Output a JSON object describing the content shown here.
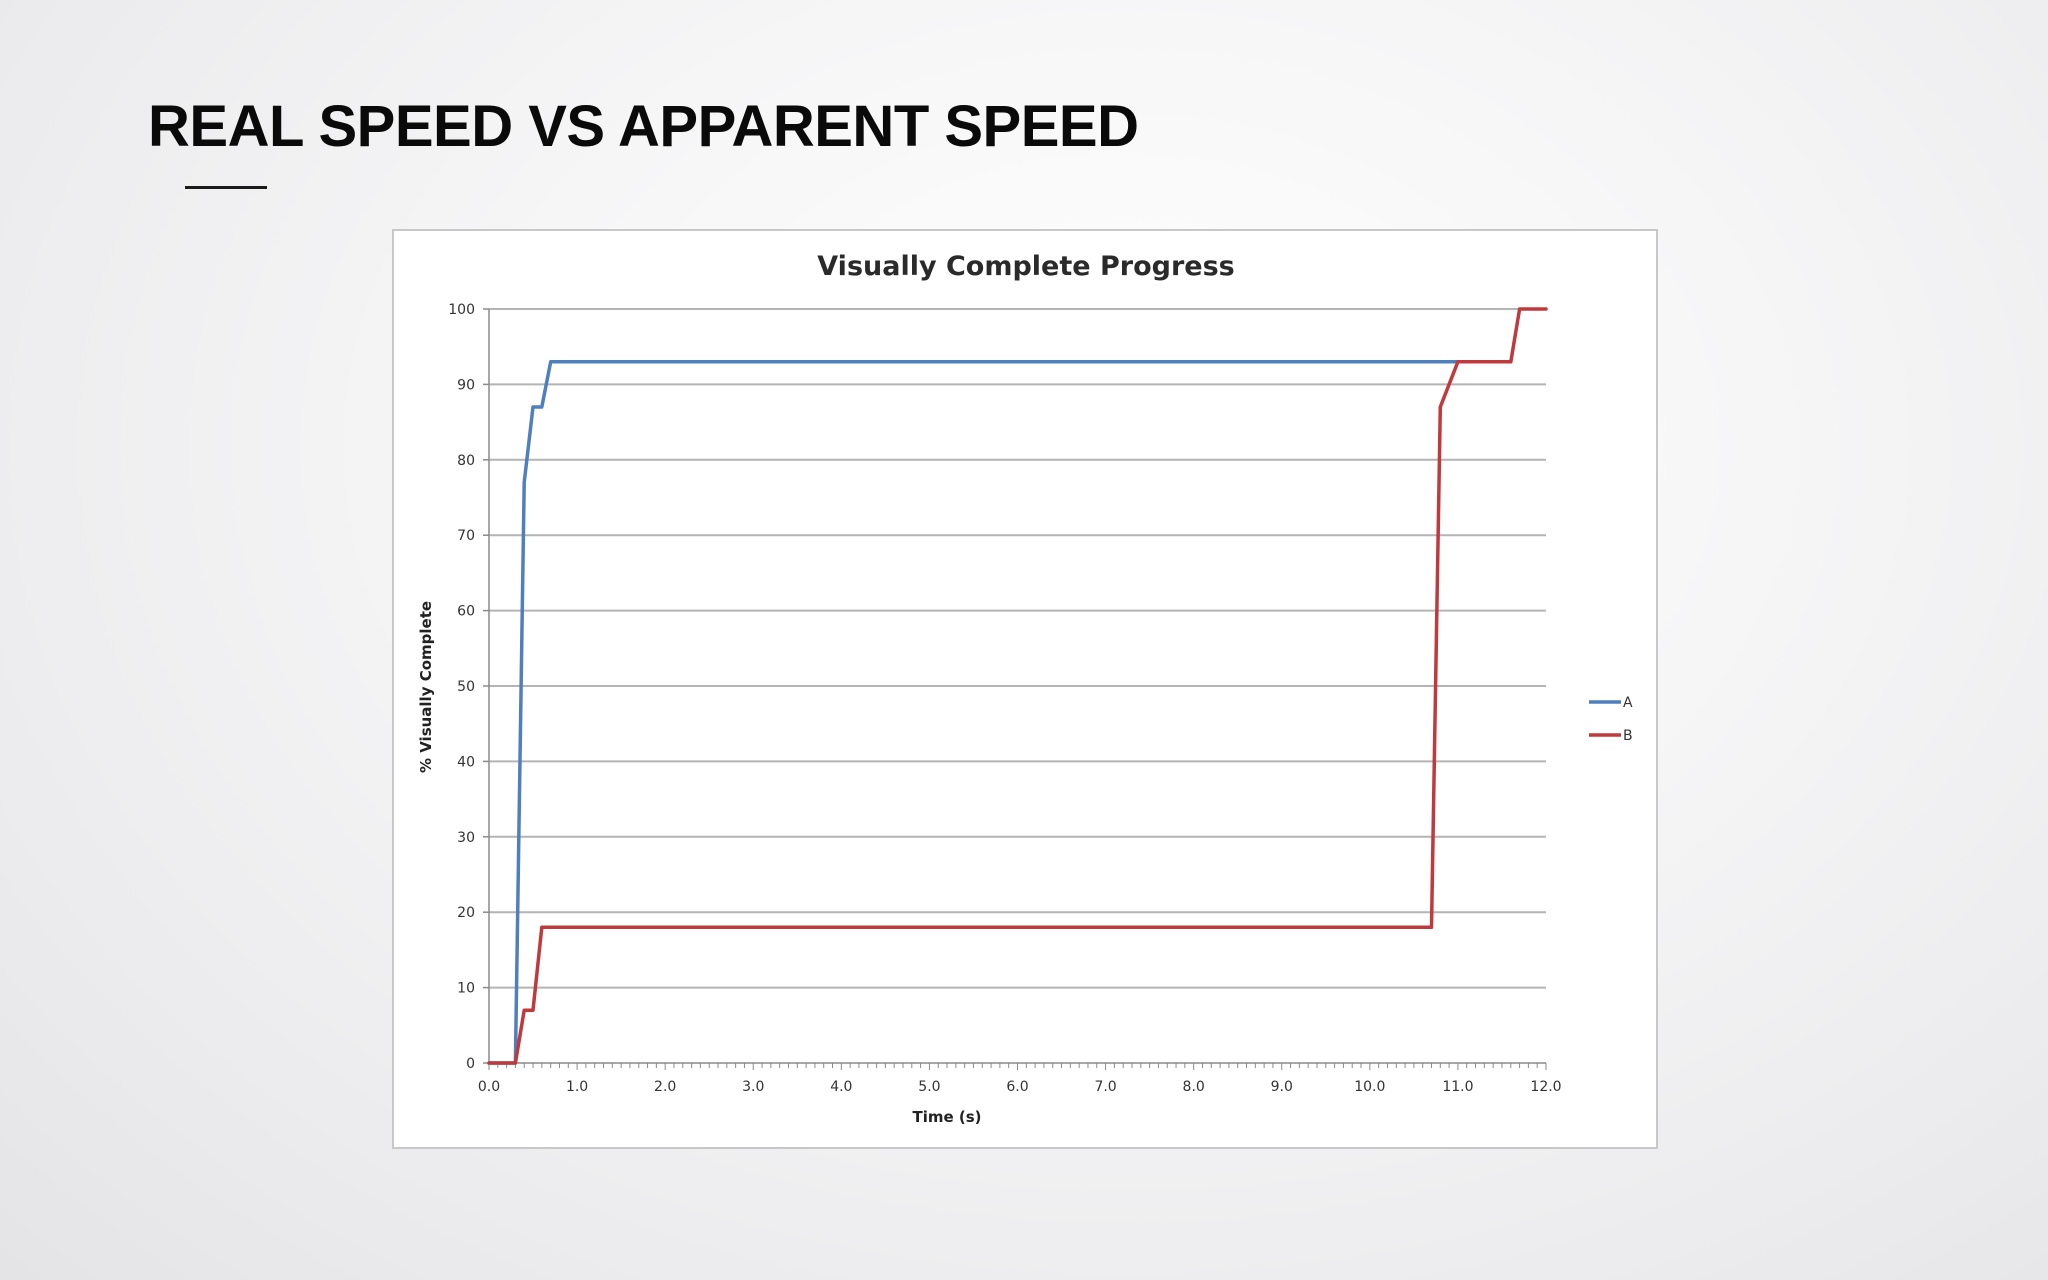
{
  "slide": {
    "title": "REAL SPEED VS APPARENT SPEED"
  },
  "colors": {
    "series_a": "#4f7fbf",
    "series_b": "#c0393c",
    "gridline": "#b4b4b4"
  },
  "chart_data": {
    "type": "line",
    "title": "Visually Complete Progress",
    "xlabel": "Time (s)",
    "ylabel": "% Visually Complete",
    "xlim": [
      0,
      12
    ],
    "ylim": [
      0,
      100
    ],
    "xticks": [
      "0.0",
      "1.0",
      "2.0",
      "3.0",
      "4.0",
      "5.0",
      "6.0",
      "7.0",
      "8.0",
      "9.0",
      "10.0",
      "11.0",
      "12.0"
    ],
    "yticks": [
      "0",
      "10",
      "20",
      "30",
      "40",
      "50",
      "60",
      "70",
      "80",
      "90",
      "100"
    ],
    "grid": true,
    "legend_position": "right",
    "series": [
      {
        "name": "A",
        "color": "#4f7fbf",
        "points": [
          [
            0.0,
            0
          ],
          [
            0.3,
            0
          ],
          [
            0.4,
            77
          ],
          [
            0.5,
            87
          ],
          [
            0.6,
            87
          ],
          [
            0.7,
            93
          ],
          [
            11.0,
            93
          ]
        ]
      },
      {
        "name": "B",
        "color": "#c0393c",
        "points": [
          [
            0.0,
            0
          ],
          [
            0.3,
            0
          ],
          [
            0.4,
            7
          ],
          [
            0.5,
            7
          ],
          [
            0.6,
            18
          ],
          [
            10.7,
            18
          ],
          [
            10.8,
            87
          ],
          [
            11.0,
            93
          ],
          [
            11.6,
            93
          ],
          [
            11.7,
            100
          ],
          [
            12.0,
            100
          ]
        ]
      }
    ]
  }
}
